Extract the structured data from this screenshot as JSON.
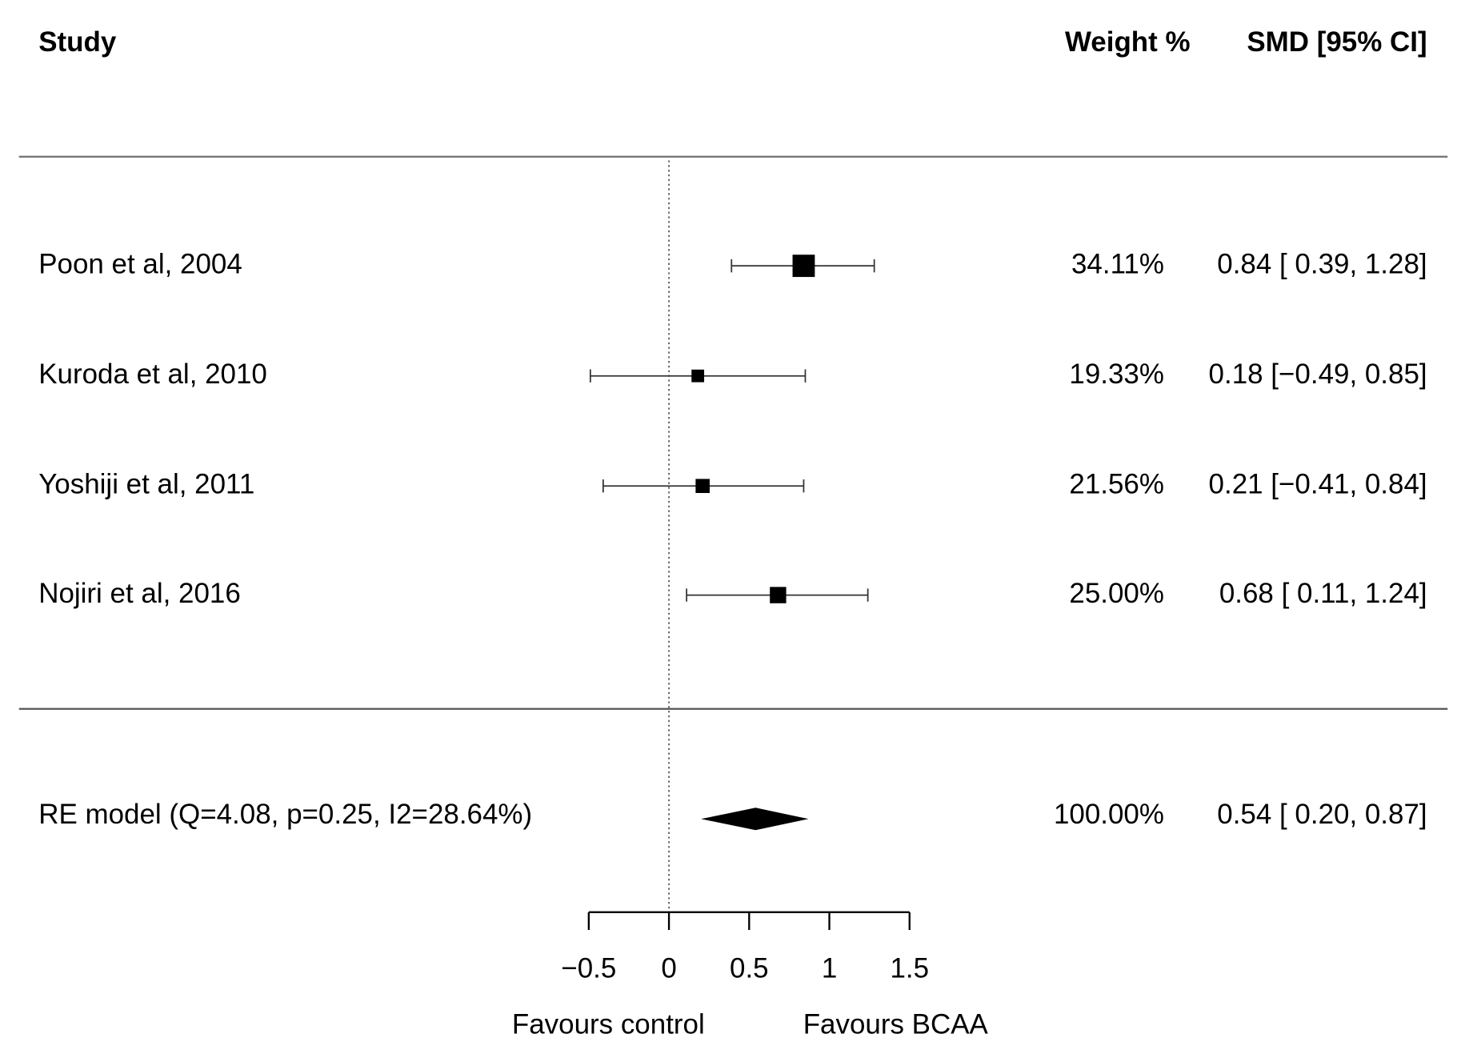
{
  "chart_data": {
    "type": "forest",
    "headers": {
      "study": "Study",
      "weight": "Weight %",
      "effect": "SMD [95% CI]"
    },
    "studies": [
      "Poon et al, 2004",
      "Kuroda et al, 2010",
      "Yoshiji et al, 2011",
      "Nojiri et al, 2016"
    ],
    "weights": [
      34.11,
      19.33,
      21.56,
      25.0
    ],
    "weight_labels": [
      "34.11%",
      "19.33%",
      "21.56%",
      "25.00%"
    ],
    "estimates": [
      0.84,
      0.18,
      0.21,
      0.68
    ],
    "lower": [
      0.39,
      -0.49,
      -0.41,
      0.11
    ],
    "upper": [
      1.28,
      0.85,
      0.84,
      1.24
    ],
    "ci_labels": [
      "0.84 [ 0.39, 1.28]",
      "0.18 [−0.49, 0.85]",
      "0.21 [−0.41, 0.84]",
      "0.68 [ 0.11, 1.24]"
    ],
    "summary": {
      "label": "RE model (Q=4.08, p=0.25, I2=28.64%)",
      "weight": 100.0,
      "weight_label": "100.00%",
      "estimate": 0.54,
      "lower": 0.2,
      "upper": 0.87,
      "ci_label": "0.54 [ 0.20, 0.87]"
    },
    "xlim": [
      -0.5,
      1.5
    ],
    "xticks": [
      {
        "value": -0.5,
        "label": "−0.5"
      },
      0,
      0.5,
      1,
      1.5
    ],
    "refline": 0,
    "x_labels": {
      "left": "Favours control",
      "right": "Favours BCAA"
    },
    "color": "#000000"
  }
}
